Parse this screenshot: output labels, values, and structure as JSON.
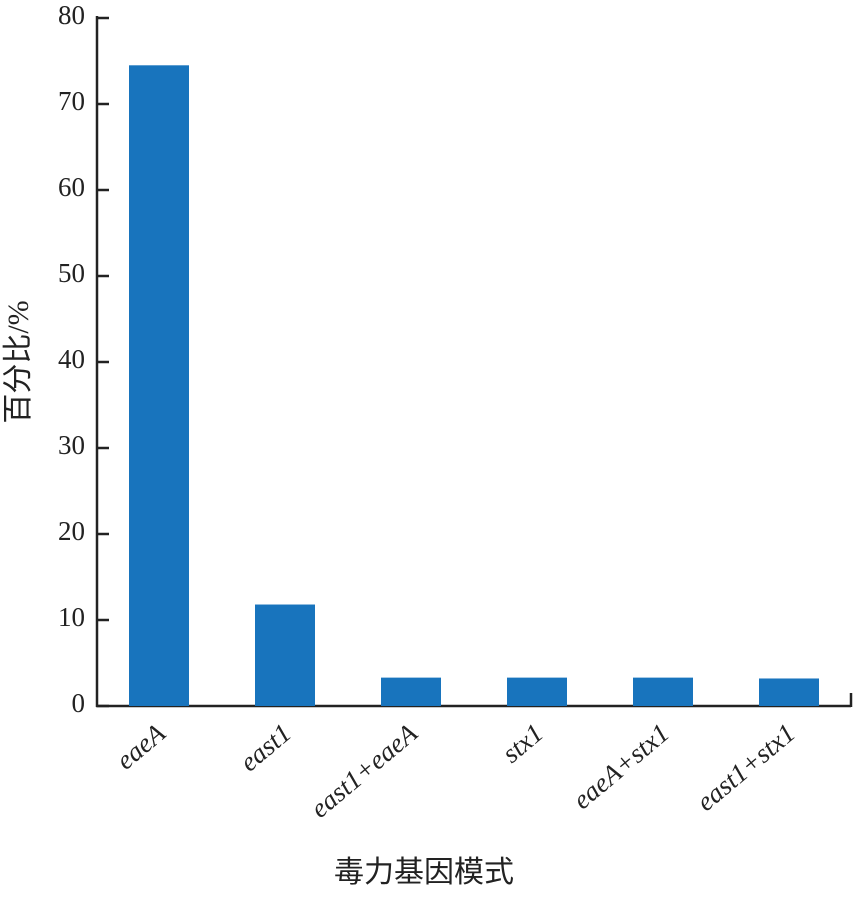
{
  "chart_data": {
    "type": "bar",
    "x_label": "毒力基因模式",
    "y_label": "百分比/%",
    "categories": [
      "eaeA",
      "east1",
      "east1+eaeA",
      "stx1",
      "eaeA+stx1",
      "east1+stx1"
    ],
    "values": [
      74.5,
      11.8,
      3.3,
      3.3,
      3.3,
      3.2
    ],
    "color": "#1874bd",
    "ylim": [
      0,
      80
    ],
    "yticks": [
      0,
      10,
      20,
      30,
      40,
      50,
      60,
      70,
      80
    ],
    "grid": false
  }
}
